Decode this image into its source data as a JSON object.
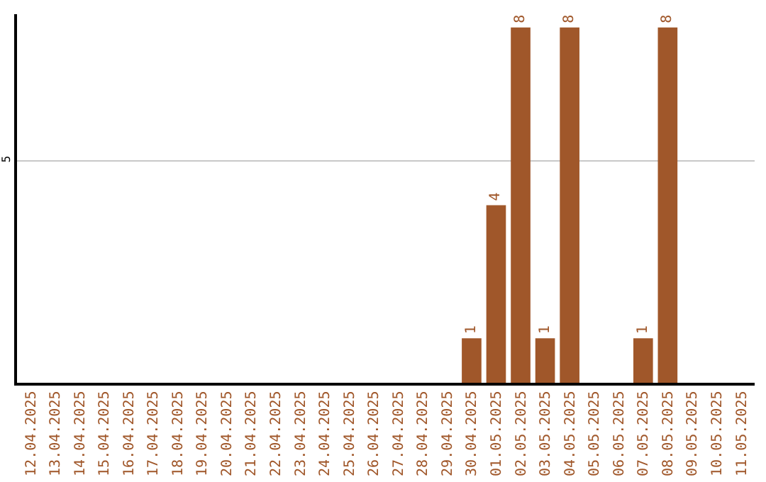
{
  "chart_data": {
    "type": "bar",
    "categories": [
      "12.04.2025",
      "13.04.2025",
      "14.04.2025",
      "15.04.2025",
      "16.04.2025",
      "17.04.2025",
      "18.04.2025",
      "19.04.2025",
      "20.04.2025",
      "21.04.2025",
      "22.04.2025",
      "23.04.2025",
      "24.04.2025",
      "25.04.2025",
      "26.04.2025",
      "27.04.2025",
      "28.04.2025",
      "29.04.2025",
      "30.04.2025",
      "01.05.2025",
      "02.05.2025",
      "03.05.2025",
      "04.05.2025",
      "05.05.2025",
      "06.05.2025",
      "07.05.2025",
      "08.05.2025",
      "09.05.2025",
      "10.05.2025",
      "11.05.2025"
    ],
    "values": [
      null,
      null,
      null,
      null,
      null,
      null,
      null,
      null,
      null,
      null,
      null,
      null,
      null,
      null,
      null,
      null,
      null,
      null,
      1,
      4,
      8,
      1,
      8,
      null,
      null,
      1,
      8,
      null,
      null,
      null
    ],
    "data_labels": true,
    "color": "#a0572a",
    "ylim": [
      0,
      8.3
    ],
    "yticks": [
      5
    ],
    "grid": "y",
    "legend": false
  }
}
